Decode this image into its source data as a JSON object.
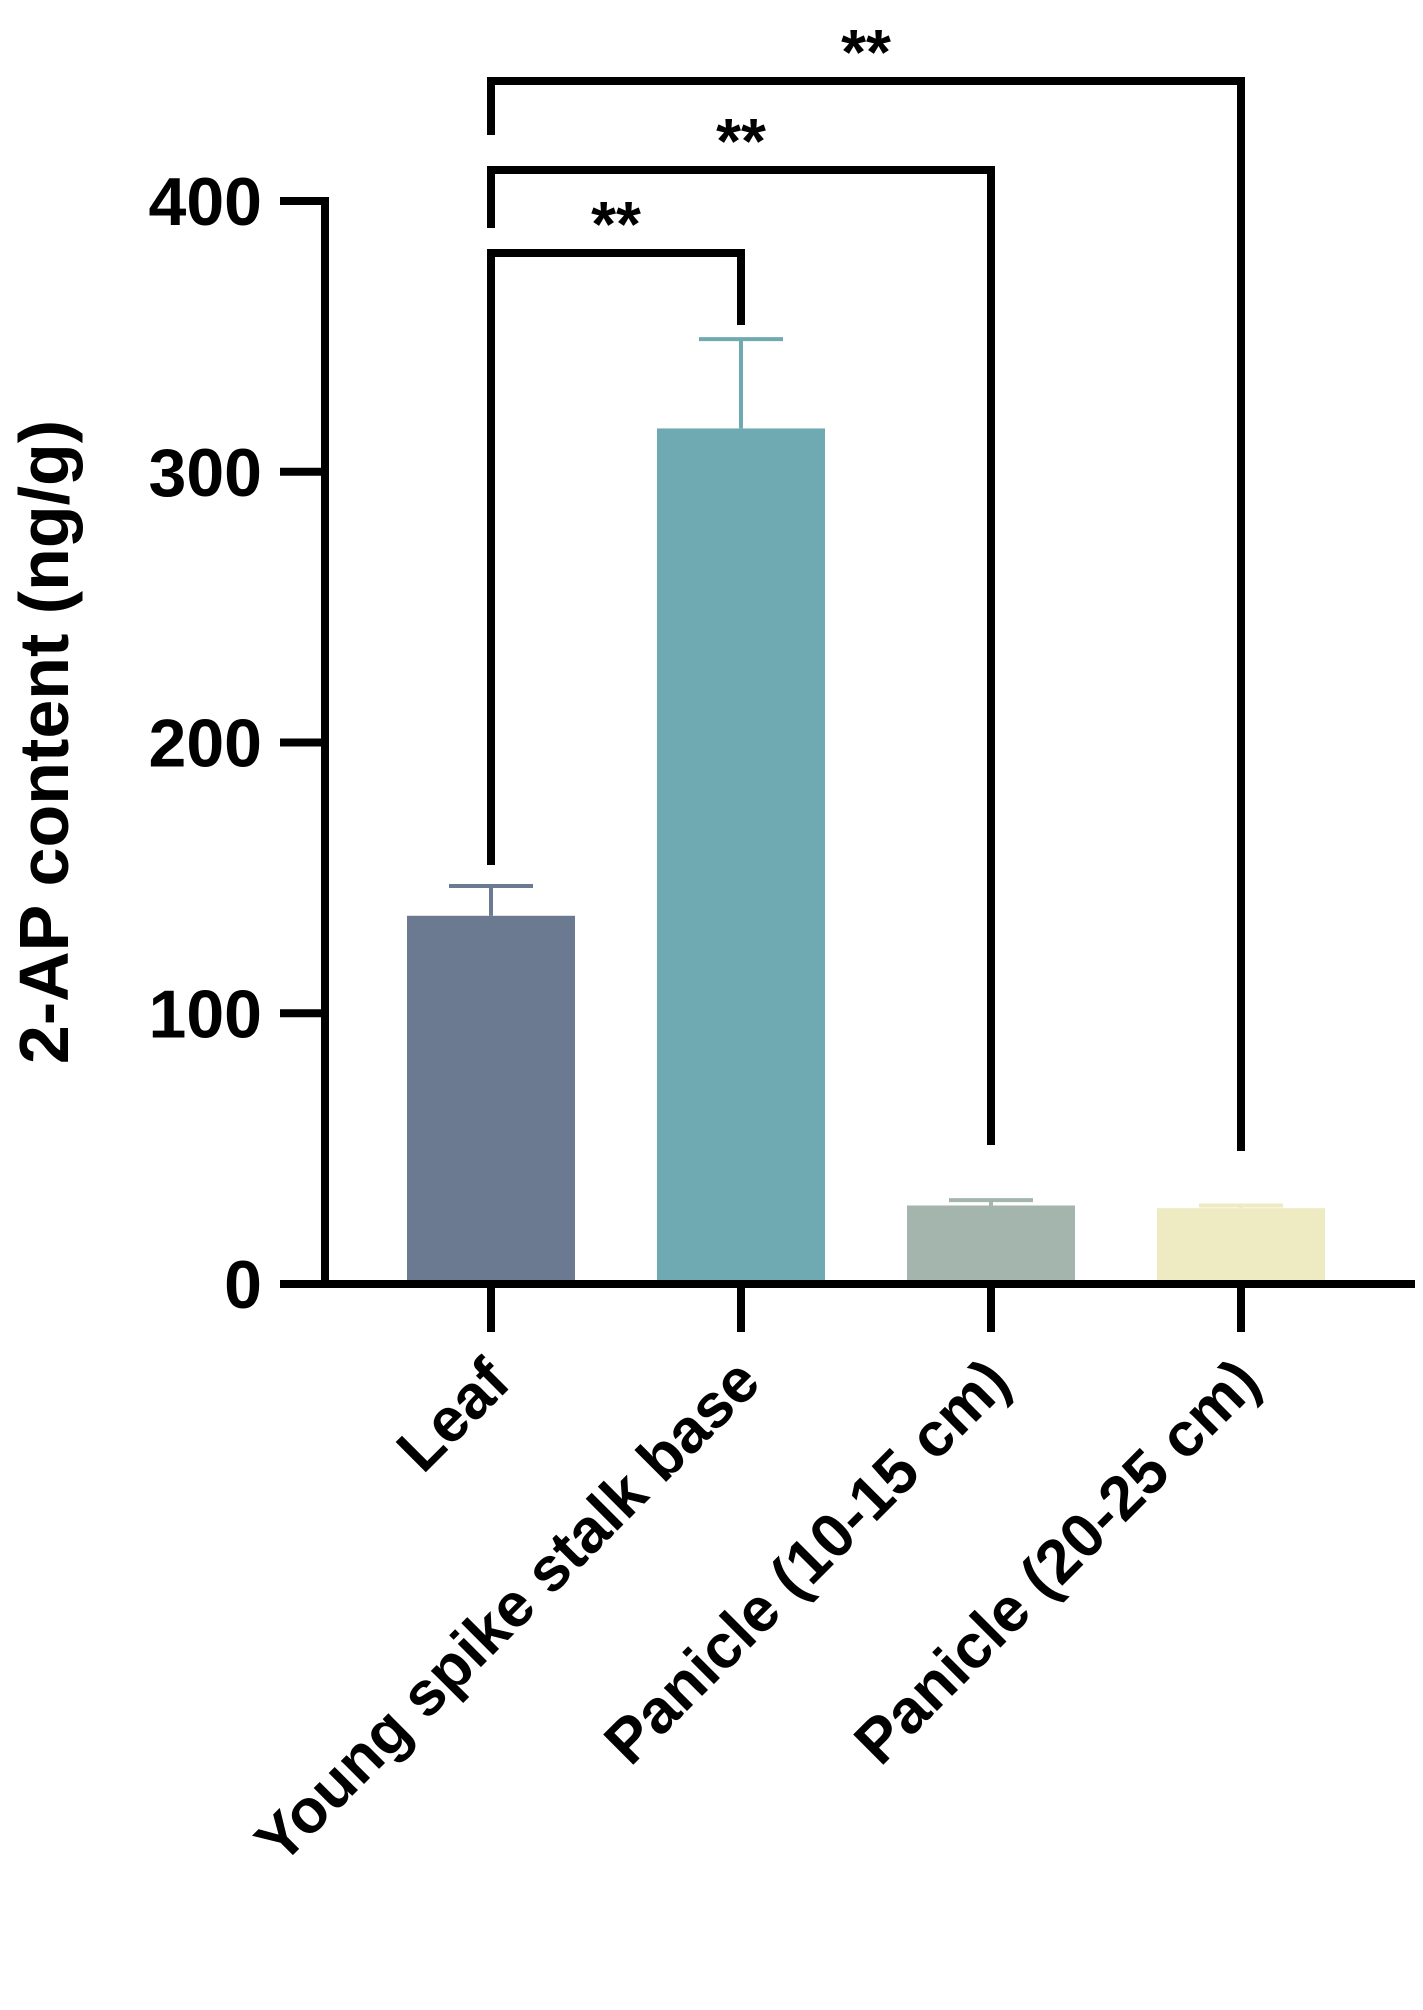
{
  "chart_data": {
    "type": "bar",
    "title": "",
    "xlabel": "",
    "ylabel": "2-AP content (ng/g)",
    "ylim": [
      0,
      400
    ],
    "yticks": [
      0,
      100,
      200,
      300,
      400
    ],
    "grid": false,
    "legend": "none",
    "categories": [
      "Leaf",
      "Young spike stalk base",
      "Panicle (10-15 cm)",
      "Panicle (20-25 cm)"
    ],
    "values": [
      136,
      316,
      29,
      28
    ],
    "errors": [
      11,
      33,
      2,
      1
    ],
    "colors": [
      "#6b7a90",
      "#6fa9b1",
      "#a4b5ae",
      "#eeebc3"
    ],
    "significance": [
      {
        "from": "Leaf",
        "to": "Young spike stalk base",
        "label": "**"
      },
      {
        "from": "Leaf",
        "to": "Panicle (10-15 cm)",
        "label": "**"
      },
      {
        "from": "Leaf",
        "to": "Panicle (20-25 cm)",
        "label": "**"
      }
    ]
  }
}
